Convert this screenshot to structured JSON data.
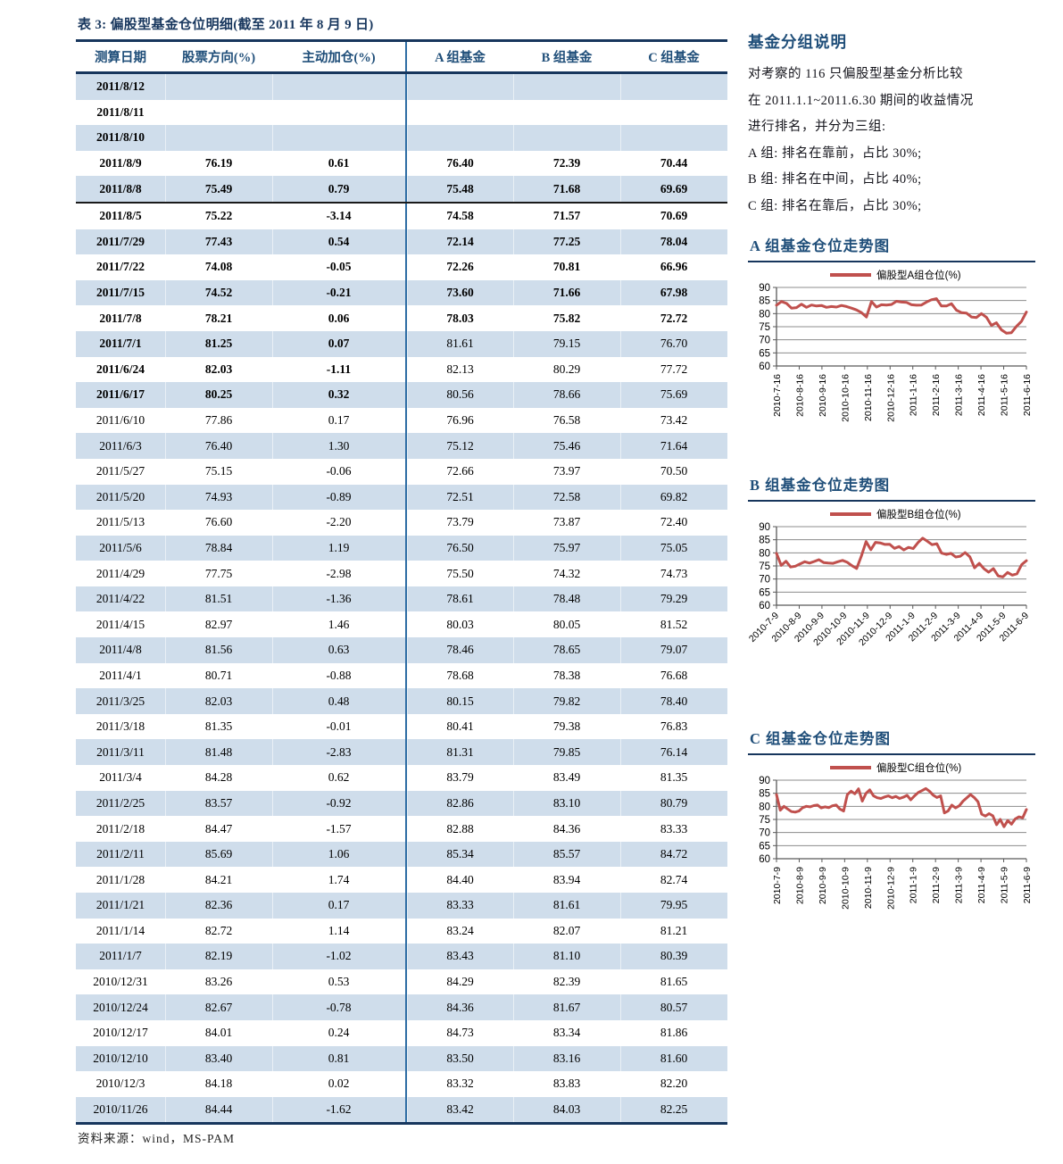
{
  "document": {
    "table_title": "表 3:  偏股型基金仓位明细(截至 2011 年 8 月 9 日)",
    "source_label": "资料来源：wind，MS-PAM"
  },
  "notes": {
    "heading": "基金分组说明",
    "lines": [
      "对考察的 116 只偏股型基金分析比较",
      "在 2011.1.1~2011.6.30 期间的收益情况",
      "进行排名，并分为三组:",
      "A 组:  排名在靠前，占比 30%;",
      "B 组:  排名在中间，占比 40%;",
      "C 组:  排名在靠后，占比 30%;"
    ]
  },
  "table": {
    "headers": [
      "测算日期",
      "股票方向(%)",
      "主动加仓(%)",
      "A 组基金",
      "B 组基金",
      "C 组基金"
    ],
    "bold_left_last_row": 12,
    "bold_right_first_row": 3,
    "bold_right_last_row": 9,
    "separator_after_row": 4,
    "rows": [
      [
        "2011/8/12",
        "",
        "",
        "",
        "",
        ""
      ],
      [
        "2011/8/11",
        "",
        "",
        "",
        "",
        ""
      ],
      [
        "2011/8/10",
        "",
        "",
        "",
        "",
        ""
      ],
      [
        "2011/8/9",
        "76.19",
        "0.61",
        "76.40",
        "72.39",
        "70.44"
      ],
      [
        "2011/8/8",
        "75.49",
        "0.79",
        "75.48",
        "71.68",
        "69.69"
      ],
      [
        "2011/8/5",
        "75.22",
        "-3.14",
        "74.58",
        "71.57",
        "70.69"
      ],
      [
        "2011/7/29",
        "77.43",
        "0.54",
        "72.14",
        "77.25",
        "78.04"
      ],
      [
        "2011/7/22",
        "74.08",
        "-0.05",
        "72.26",
        "70.81",
        "66.96"
      ],
      [
        "2011/7/15",
        "74.52",
        "-0.21",
        "73.60",
        "71.66",
        "67.98"
      ],
      [
        "2011/7/8",
        "78.21",
        "0.06",
        "78.03",
        "75.82",
        "72.72"
      ],
      [
        "2011/7/1",
        "81.25",
        "0.07",
        "81.61",
        "79.15",
        "76.70"
      ],
      [
        "2011/6/24",
        "82.03",
        "-1.11",
        "82.13",
        "80.29",
        "77.72"
      ],
      [
        "2011/6/17",
        "80.25",
        "0.32",
        "80.56",
        "78.66",
        "75.69"
      ],
      [
        "2011/6/10",
        "77.86",
        "0.17",
        "76.96",
        "76.58",
        "73.42"
      ],
      [
        "2011/6/3",
        "76.40",
        "1.30",
        "75.12",
        "75.46",
        "71.64"
      ],
      [
        "2011/5/27",
        "75.15",
        "-0.06",
        "72.66",
        "73.97",
        "70.50"
      ],
      [
        "2011/5/20",
        "74.93",
        "-0.89",
        "72.51",
        "72.58",
        "69.82"
      ],
      [
        "2011/5/13",
        "76.60",
        "-2.20",
        "73.79",
        "73.87",
        "72.40"
      ],
      [
        "2011/5/6",
        "78.84",
        "1.19",
        "76.50",
        "75.97",
        "75.05"
      ],
      [
        "2011/4/29",
        "77.75",
        "-2.98",
        "75.50",
        "74.32",
        "74.73"
      ],
      [
        "2011/4/22",
        "81.51",
        "-1.36",
        "78.61",
        "78.48",
        "79.29"
      ],
      [
        "2011/4/15",
        "82.97",
        "1.46",
        "80.03",
        "80.05",
        "81.52"
      ],
      [
        "2011/4/8",
        "81.56",
        "0.63",
        "78.46",
        "78.65",
        "79.07"
      ],
      [
        "2011/4/1",
        "80.71",
        "-0.88",
        "78.68",
        "78.38",
        "76.68"
      ],
      [
        "2011/3/25",
        "82.03",
        "0.48",
        "80.15",
        "79.82",
        "78.40"
      ],
      [
        "2011/3/18",
        "81.35",
        "-0.01",
        "80.41",
        "79.38",
        "76.83"
      ],
      [
        "2011/3/11",
        "81.48",
        "-2.83",
        "81.31",
        "79.85",
        "76.14"
      ],
      [
        "2011/3/4",
        "84.28",
        "0.62",
        "83.79",
        "83.49",
        "81.35"
      ],
      [
        "2011/2/25",
        "83.57",
        "-0.92",
        "82.86",
        "83.10",
        "80.79"
      ],
      [
        "2011/2/18",
        "84.47",
        "-1.57",
        "82.88",
        "84.36",
        "83.33"
      ],
      [
        "2011/2/11",
        "85.69",
        "1.06",
        "85.34",
        "85.57",
        "84.72"
      ],
      [
        "2011/1/28",
        "84.21",
        "1.74",
        "84.40",
        "83.94",
        "82.74"
      ],
      [
        "2011/1/21",
        "82.36",
        "0.17",
        "83.33",
        "81.61",
        "79.95"
      ],
      [
        "2011/1/14",
        "82.72",
        "1.14",
        "83.24",
        "82.07",
        "81.21"
      ],
      [
        "2011/1/7",
        "82.19",
        "-1.02",
        "83.43",
        "81.10",
        "80.39"
      ],
      [
        "2010/12/31",
        "83.26",
        "0.53",
        "84.29",
        "82.39",
        "81.65"
      ],
      [
        "2010/12/24",
        "82.67",
        "-0.78",
        "84.36",
        "81.67",
        "80.57"
      ],
      [
        "2010/12/17",
        "84.01",
        "0.24",
        "84.73",
        "83.34",
        "81.86"
      ],
      [
        "2010/12/10",
        "83.40",
        "0.81",
        "83.50",
        "83.16",
        "81.60"
      ],
      [
        "2010/12/3",
        "84.18",
        "0.02",
        "83.32",
        "83.83",
        "82.20"
      ],
      [
        "2010/11/26",
        "84.44",
        "-1.62",
        "83.42",
        "84.03",
        "82.25"
      ]
    ]
  },
  "colors": {
    "heading_blue": "#1F4E79",
    "title_navy": "#17365D",
    "stripe_blue": "#CFDDEB",
    "divider_blue": "#2E6DA4",
    "line_red": "#C0504D",
    "gridline_gray": "#8C8C8C",
    "axis_gray": "#595959"
  },
  "chart_data": [
    {
      "id": "a",
      "type": "line",
      "heading": "A 组基金仓位走势图",
      "legend": "偏股型A组仓位(%)",
      "ylim": [
        60,
        90
      ],
      "yticks": [
        60,
        65,
        70,
        75,
        80,
        85,
        90
      ],
      "grid": "horizontal",
      "legend_position": "top",
      "tick_rotation": 90,
      "x_labels": [
        "2010-7-16",
        "2010-8-16",
        "2010-9-16",
        "2010-10-16",
        "2010-11-16",
        "2010-12-16",
        "2011-1-16",
        "2011-2-16",
        "2011-3-16",
        "2011-4-16",
        "2011-5-16",
        "2011-6-16"
      ],
      "values": [
        83.2,
        84.6,
        83.9,
        82.1,
        82.3,
        83.6,
        82.4,
        83.3,
        82.9,
        83.1,
        82.4,
        82.7,
        82.5,
        83.1,
        82.7,
        82.1,
        81.4,
        80.4,
        78.7,
        84.6,
        82.5,
        83.4,
        83.3,
        83.5,
        84.7,
        84.4,
        84.3,
        83.4,
        83.2,
        83.3,
        84.4,
        85.3,
        85.7,
        82.9,
        82.9,
        83.8,
        81.3,
        80.4,
        80.2,
        78.7,
        78.5,
        80.0,
        78.6,
        75.5,
        76.5,
        73.8,
        72.5,
        72.7,
        75.1,
        77.0,
        80.6
      ]
    },
    {
      "id": "b",
      "type": "line",
      "heading": "B 组基金仓位走势图",
      "legend": "偏股型B组仓位(%)",
      "ylim": [
        60,
        90
      ],
      "yticks": [
        60,
        65,
        70,
        75,
        80,
        85,
        90
      ],
      "grid": "horizontal",
      "legend_position": "top",
      "tick_rotation": 45,
      "x_labels": [
        "2010-7-9",
        "2010-8-9",
        "2010-9-9",
        "2010-10-9",
        "2010-11-9",
        "2010-12-9",
        "2011-1-9",
        "2011-2-9",
        "2011-3-9",
        "2011-4-9",
        "2011-5-9",
        "2011-6-9"
      ],
      "values": [
        79.8,
        75.2,
        76.8,
        74.6,
        74.9,
        75.8,
        76.6,
        76.1,
        76.7,
        77.4,
        76.3,
        76.1,
        76.0,
        76.6,
        77.1,
        76.4,
        75.1,
        74.0,
        78.8,
        84.3,
        81.2,
        84.0,
        83.8,
        83.2,
        83.3,
        81.7,
        82.4,
        81.1,
        82.1,
        81.6,
        83.9,
        85.6,
        84.4,
        83.1,
        83.5,
        79.9,
        79.4,
        79.8,
        78.4,
        78.7,
        80.1,
        78.5,
        74.3,
        76.0,
        73.9,
        72.6,
        74.0,
        71.2,
        70.8,
        72.5,
        71.5,
        72.0,
        75.5,
        77.0
      ]
    },
    {
      "id": "c",
      "type": "line",
      "heading": "C 组基金仓位走势图",
      "legend": "偏股型C组仓位(%)",
      "ylim": [
        60,
        90
      ],
      "yticks": [
        60,
        65,
        70,
        75,
        80,
        85,
        90
      ],
      "grid": "horizontal",
      "legend_position": "top",
      "tick_rotation": 90,
      "x_labels": [
        "2010-7-9",
        "2010-8-9",
        "2010-9-9",
        "2010-10-9",
        "2010-11-9",
        "2010-12-9",
        "2011-1-9",
        "2011-2-9",
        "2011-3-9",
        "2011-4-9",
        "2011-5-9",
        "2011-6-9"
      ],
      "values": [
        84.5,
        78.5,
        80.0,
        79.0,
        78.0,
        77.8,
        78.2,
        79.5,
        80.0,
        79.8,
        80.3,
        80.5,
        79.4,
        79.8,
        79.5,
        80.2,
        80.5,
        79.0,
        78.2,
        84.5,
        85.8,
        84.8,
        86.7,
        82.0,
        85.0,
        86.3,
        84.0,
        83.3,
        83.0,
        83.6,
        84.0,
        83.3,
        83.8,
        83.0,
        83.5,
        84.2,
        82.5,
        84.0,
        85.3,
        86.0,
        86.8,
        85.8,
        84.3,
        83.4,
        84.0,
        77.5,
        78.2,
        80.5,
        79.4,
        80.2,
        82.0,
        83.2,
        84.5,
        83.4,
        81.8,
        77.0,
        76.3,
        77.2,
        76.4,
        73.0,
        75.0,
        72.2,
        74.6,
        73.2,
        75.2,
        76.0,
        75.6,
        78.8
      ]
    }
  ]
}
